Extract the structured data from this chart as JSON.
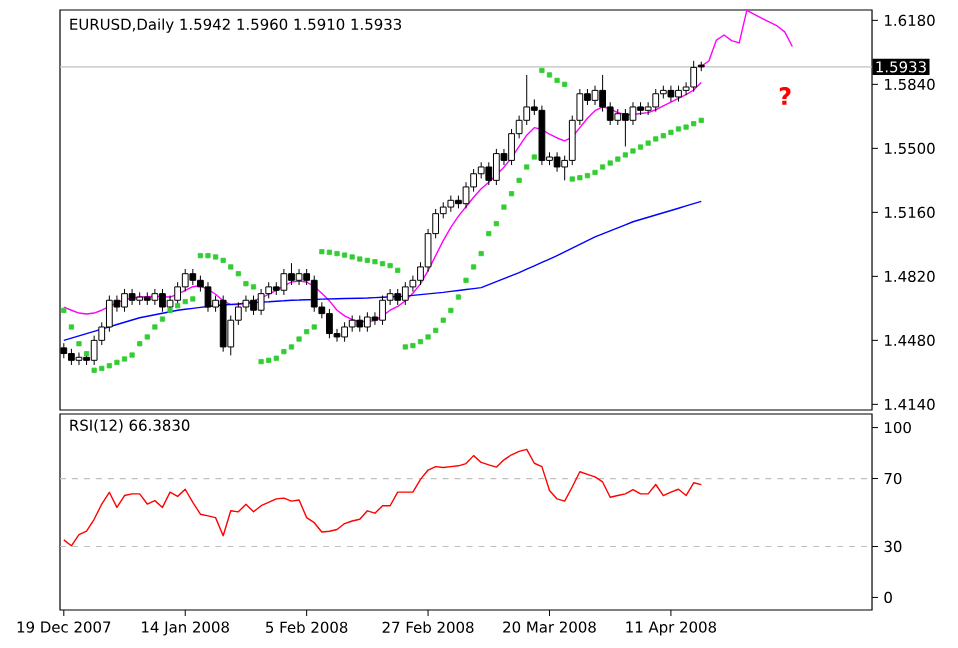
{
  "chart_data": [
    {
      "type": "candlestick",
      "title": "EURUSD,Daily 1.5942 1.5960 1.5910 1.5933",
      "categories": [
        null,
        null,
        null,
        null,
        null,
        null,
        null,
        null,
        null,
        null,
        null,
        null,
        null,
        null,
        null,
        null,
        null,
        null,
        null,
        null,
        null,
        null,
        null,
        null,
        null,
        null,
        null,
        null,
        null,
        null,
        null,
        null,
        null,
        null,
        null,
        null,
        null,
        null,
        null,
        null,
        null,
        null,
        null,
        null,
        null,
        null,
        null,
        null,
        null,
        null,
        null,
        null,
        null,
        null,
        null,
        null,
        null,
        null,
        null,
        null,
        null,
        null,
        null,
        null,
        null,
        null,
        null,
        null,
        null,
        null,
        null,
        null,
        null,
        null,
        null,
        null,
        null,
        null,
        null,
        null,
        null,
        null,
        null,
        null,
        null,
        null,
        null,
        null,
        null,
        null,
        null,
        null,
        null,
        null,
        null,
        null,
        null,
        null,
        null,
        null,
        null,
        null,
        null,
        null,
        null,
        null,
        null
      ],
      "ohlc": [
        [
          1.444,
          1.4465,
          1.4385,
          1.441
        ],
        [
          1.441,
          1.4435,
          1.4349,
          1.4374
        ],
        [
          1.4374,
          1.4415,
          1.4349,
          1.439
        ],
        [
          1.439,
          1.4415,
          1.4349,
          1.4374
        ],
        [
          1.4374,
          1.4505,
          1.4349,
          1.448
        ],
        [
          1.448,
          1.4576,
          1.4455,
          1.4551
        ],
        [
          1.4551,
          1.4718,
          1.4526,
          1.4693
        ],
        [
          1.4693,
          1.4718,
          1.4632,
          1.4657
        ],
        [
          1.4657,
          1.4753,
          1.4632,
          1.4728
        ],
        [
          1.4728,
          1.4753,
          1.4668,
          1.4693
        ],
        [
          1.4693,
          1.4735,
          1.4668,
          1.471
        ],
        [
          1.471,
          1.4735,
          1.4668,
          1.4693
        ],
        [
          1.4693,
          1.4753,
          1.4668,
          1.4728
        ],
        [
          1.4728,
          1.4753,
          1.4632,
          1.4657
        ],
        [
          1.4657,
          1.4718,
          1.4632,
          1.4693
        ],
        [
          1.4693,
          1.4789,
          1.4668,
          1.4764
        ],
        [
          1.4764,
          1.4859,
          1.4739,
          1.4834
        ],
        [
          1.4834,
          1.4859,
          1.4774,
          1.4799
        ],
        [
          1.4799,
          1.4824,
          1.4739,
          1.4764
        ],
        [
          1.4764,
          1.4789,
          1.4632,
          1.4657
        ],
        [
          1.4657,
          1.4718,
          1.4632,
          1.4693
        ],
        [
          1.4693,
          1.4718,
          1.442,
          1.4445
        ],
        [
          1.4445,
          1.4612,
          1.44,
          1.4587
        ],
        [
          1.4587,
          1.4682,
          1.4562,
          1.4657
        ],
        [
          1.4657,
          1.4718,
          1.4632,
          1.4693
        ],
        [
          1.4693,
          1.4718,
          1.4615,
          1.464
        ],
        [
          1.464,
          1.4753,
          1.4615,
          1.4728
        ],
        [
          1.4728,
          1.4789,
          1.4703,
          1.4764
        ],
        [
          1.4764,
          1.4789,
          1.4721,
          1.4746
        ],
        [
          1.4746,
          1.4859,
          1.4721,
          1.4834
        ],
        [
          1.4834,
          1.489,
          1.4774,
          1.4799
        ],
        [
          1.4799,
          1.4859,
          1.4774,
          1.4834
        ],
        [
          1.4834,
          1.4859,
          1.4774,
          1.4799
        ],
        [
          1.4799,
          1.4824,
          1.4632,
          1.4657
        ],
        [
          1.4657,
          1.4682,
          1.4597,
          1.4622
        ],
        [
          1.4622,
          1.4647,
          1.4491,
          1.4516
        ],
        [
          1.4516,
          1.4541,
          1.4473,
          1.4498
        ],
        [
          1.4498,
          1.4576,
          1.4473,
          1.4551
        ],
        [
          1.4551,
          1.4612,
          1.4526,
          1.4587
        ],
        [
          1.4587,
          1.4612,
          1.4526,
          1.4551
        ],
        [
          1.4551,
          1.4629,
          1.4526,
          1.4604
        ],
        [
          1.4604,
          1.4629,
          1.4562,
          1.4587
        ],
        [
          1.4587,
          1.4718,
          1.4562,
          1.4693
        ],
        [
          1.4693,
          1.4753,
          1.4668,
          1.4728
        ],
        [
          1.4728,
          1.4753,
          1.4668,
          1.4693
        ],
        [
          1.4693,
          1.4789,
          1.4668,
          1.4764
        ],
        [
          1.4764,
          1.4824,
          1.4739,
          1.4799
        ],
        [
          1.4799,
          1.4895,
          1.4774,
          1.487
        ],
        [
          1.487,
          1.5072,
          1.4845,
          1.5047
        ],
        [
          1.5047,
          1.5178,
          1.5022,
          1.5153
        ],
        [
          1.5153,
          1.5213,
          1.5128,
          1.5188
        ],
        [
          1.5188,
          1.5249,
          1.5163,
          1.5224
        ],
        [
          1.5224,
          1.5249,
          1.5181,
          1.5206
        ],
        [
          1.5206,
          1.532,
          1.5181,
          1.5295
        ],
        [
          1.5295,
          1.539,
          1.527,
          1.5365
        ],
        [
          1.5365,
          1.5426,
          1.534,
          1.5401
        ],
        [
          1.5401,
          1.5426,
          1.5305,
          1.533
        ],
        [
          1.533,
          1.5497,
          1.5305,
          1.5472
        ],
        [
          1.5472,
          1.5497,
          1.5411,
          1.5436
        ],
        [
          1.5436,
          1.5603,
          1.5411,
          1.5578
        ],
        [
          1.5578,
          1.5674,
          1.5553,
          1.5649
        ],
        [
          1.5649,
          1.589,
          1.5624,
          1.572
        ],
        [
          1.572,
          1.576,
          1.5677,
          1.5702
        ],
        [
          1.5702,
          1.5727,
          1.5411,
          1.5436
        ],
        [
          1.5436,
          1.5479,
          1.5411,
          1.5454
        ],
        [
          1.5454,
          1.5479,
          1.5376,
          1.5401
        ],
        [
          1.5401,
          1.5461,
          1.533,
          1.5436
        ],
        [
          1.5436,
          1.5674,
          1.5411,
          1.5649
        ],
        [
          1.5649,
          1.5815,
          1.5624,
          1.579
        ],
        [
          1.579,
          1.5815,
          1.573,
          1.5755
        ],
        [
          1.5755,
          1.5833,
          1.573,
          1.5808
        ],
        [
          1.5808,
          1.589,
          1.5695,
          1.572
        ],
        [
          1.572,
          1.5745,
          1.5624,
          1.5649
        ],
        [
          1.5649,
          1.5709,
          1.5624,
          1.5684
        ],
        [
          1.5684,
          1.5709,
          1.551,
          1.5649
        ],
        [
          1.5649,
          1.5745,
          1.5624,
          1.572
        ],
        [
          1.572,
          1.5745,
          1.5677,
          1.5702
        ],
        [
          1.5702,
          1.5745,
          1.5677,
          1.572
        ],
        [
          1.572,
          1.5815,
          1.5695,
          1.579
        ],
        [
          1.579,
          1.5833,
          1.5765,
          1.5808
        ],
        [
          1.5808,
          1.5833,
          1.5748,
          1.5773
        ],
        [
          1.5773,
          1.5833,
          1.5748,
          1.5808
        ],
        [
          1.5808,
          1.5851,
          1.5783,
          1.5826
        ],
        [
          1.5826,
          1.5965,
          1.5801,
          1.593
        ],
        [
          1.5942,
          1.596,
          1.591,
          1.5933
        ],
        null,
        null,
        null,
        null,
        null,
        null,
        null,
        null,
        null,
        null,
        null,
        null,
        null,
        null,
        null,
        null,
        null,
        null,
        null,
        null,
        null,
        null
      ],
      "series": [
        {
          "type": "line",
          "color": "#ff00ff",
          "values": [
            1.4657,
            1.464,
            1.4625,
            1.462,
            1.4625,
            1.464,
            1.466,
            1.468,
            1.4695,
            1.4705,
            1.471,
            1.4712,
            1.4714,
            1.4712,
            1.471,
            1.4725,
            1.4745,
            1.4765,
            1.477,
            1.475,
            1.4725,
            1.469,
            1.467,
            1.467,
            1.468,
            1.469,
            1.4705,
            1.4725,
            1.4745,
            1.477,
            1.479,
            1.4795,
            1.479,
            1.4765,
            1.473,
            1.469,
            1.464,
            1.461,
            1.459,
            1.458,
            1.458,
            1.4585,
            1.461,
            1.464,
            1.466,
            1.469,
            1.473,
            1.478,
            1.485,
            1.493,
            1.501,
            1.508,
            1.514,
            1.519,
            1.524,
            1.5285,
            1.532,
            1.536,
            1.54,
            1.545,
            1.551,
            1.557,
            1.561,
            1.56,
            1.5575,
            1.5555,
            1.554,
            1.556,
            1.561,
            1.566,
            1.57,
            1.572,
            1.571,
            1.569,
            1.568,
            1.568,
            1.5685,
            1.569,
            1.5705,
            1.5725,
            1.5745,
            1.5765,
            1.5785,
            1.581,
            1.585,
            null,
            null,
            null,
            null,
            null,
            null,
            null,
            null,
            null,
            null,
            null,
            null,
            null,
            null,
            null,
            null,
            null,
            null,
            null,
            null,
            null,
            null
          ]
        },
        {
          "type": "line",
          "color": "#0000ff",
          "values": [
            1.448,
            1.4492,
            1.4504,
            1.4516,
            1.4528,
            1.454,
            1.4552,
            1.4564,
            1.4576,
            1.4588,
            1.46,
            1.4608,
            1.4616,
            1.4624,
            1.4632,
            1.464,
            1.4645,
            1.465,
            1.4655,
            1.466,
            1.4665,
            1.4668,
            1.4671,
            1.4674,
            1.4677,
            1.468,
            1.4683,
            1.4685,
            1.4688,
            1.469,
            1.4693,
            1.4694,
            1.4696,
            1.4697,
            1.4699,
            1.47,
            1.4701,
            1.4702,
            1.4703,
            1.4704,
            1.4705,
            1.4707,
            1.4709,
            1.4711,
            1.4713,
            1.4715,
            1.4719,
            1.4723,
            1.4727,
            1.4731,
            1.4735,
            1.474,
            1.4745,
            1.475,
            1.4755,
            1.476,
            1.4776,
            1.4792,
            1.4808,
            1.4824,
            1.484,
            1.4858,
            1.4876,
            1.4894,
            1.4912,
            1.493,
            1.495,
            1.497,
            1.499,
            1.501,
            1.503,
            1.5046,
            1.5062,
            1.5078,
            1.5094,
            1.511,
            1.5122,
            1.5134,
            1.5146,
            1.5158,
            1.517,
            1.5182,
            1.5194,
            1.5206,
            1.5218,
            null,
            null,
            null,
            null,
            null,
            null,
            null,
            null,
            null,
            null,
            null,
            null,
            null,
            null,
            null,
            null,
            null,
            null,
            null,
            null,
            null,
            null
          ]
        },
        {
          "type": "scatter",
          "color": "#32cd32",
          "marker": "square",
          "values": [
            1.4639,
            1.4551,
            1.4462,
            1.4409,
            1.4321,
            1.4331,
            1.4345,
            1.4363,
            1.4381,
            1.4402,
            1.4462,
            1.4498,
            1.4551,
            1.4593,
            1.4639,
            1.4664,
            1.4686,
            1.47,
            1.493,
            1.493,
            1.4923,
            1.4905,
            1.487,
            1.4834,
            1.4781,
            1.4764,
            1.4367,
            1.4374,
            1.4385,
            1.442,
            1.4445,
            1.4487,
            1.4526,
            1.4551,
            1.4951,
            1.4948,
            1.4941,
            1.4933,
            1.4923,
            1.4912,
            1.4905,
            1.4898,
            1.4887,
            1.4877,
            1.4852,
            1.4445,
            1.4452,
            1.4473,
            1.4498,
            1.4533,
            1.4587,
            1.4639,
            1.471,
            1.4799,
            1.487,
            1.4941,
            1.5047,
            1.51,
            1.5188,
            1.5259,
            1.533,
            1.5401,
            1.5454,
            1.5914,
            1.589,
            1.5861,
            1.584,
            1.5337,
            1.5344,
            1.5355,
            1.5372,
            1.5401,
            1.5422,
            1.5443,
            1.5465,
            1.5486,
            1.5507,
            1.5528,
            1.555,
            1.5567,
            1.5585,
            1.5603,
            1.5613,
            1.5631,
            1.5649,
            null,
            null,
            null,
            null,
            null,
            null,
            null,
            null,
            null,
            null,
            null,
            null,
            null,
            null,
            null,
            null,
            null,
            null,
            null,
            null,
            null,
            null
          ]
        },
        {
          "type": "line",
          "color": "#ff00ff",
          "values": [
            null,
            null,
            null,
            null,
            null,
            null,
            null,
            null,
            null,
            null,
            null,
            null,
            null,
            null,
            null,
            null,
            null,
            null,
            null,
            null,
            null,
            null,
            null,
            null,
            null,
            null,
            null,
            null,
            null,
            null,
            null,
            null,
            null,
            null,
            null,
            null,
            null,
            null,
            null,
            null,
            null,
            null,
            null,
            null,
            null,
            null,
            null,
            null,
            null,
            null,
            null,
            null,
            null,
            null,
            null,
            null,
            null,
            null,
            null,
            null,
            null,
            null,
            null,
            null,
            null,
            null,
            null,
            null,
            null,
            null,
            null,
            null,
            null,
            null,
            null,
            null,
            null,
            null,
            null,
            null,
            null,
            null,
            null,
            null,
            1.5936,
            1.5964,
            1.6075,
            1.6102,
            1.6072,
            1.606,
            1.6233,
            1.6212,
            1.619,
            1.617,
            1.615,
            1.6119,
            1.6041,
            null,
            null,
            null,
            null,
            null,
            null,
            null,
            null,
            null,
            null
          ]
        }
      ],
      "ylim": [
        1.411,
        1.6235
      ],
      "yticks": [
        {
          "value": 1.618,
          "label": "1.6180"
        },
        {
          "value": 1.584,
          "label": "1.5840"
        },
        {
          "value": 1.55,
          "label": "1.5500"
        },
        {
          "value": 1.516,
          "label": "1.5160"
        },
        {
          "value": 1.482,
          "label": "1.4820"
        },
        {
          "value": 1.448,
          "label": "1.4480"
        },
        {
          "value": 1.414,
          "label": "1.4140"
        }
      ],
      "ref_lines": [
        {
          "axis": "y",
          "value": 1.5933,
          "label": "1.5933",
          "color": "#c0c0c0"
        }
      ],
      "annotations": [
        "?"
      ],
      "tick_labels": "y"
    },
    {
      "type": "line",
      "title": "RSI(12) 66.3830",
      "categories": [
        "19 Dec 2007",
        null,
        null,
        null,
        null,
        null,
        null,
        null,
        null,
        null,
        null,
        null,
        null,
        null,
        null,
        null,
        "14 Jan 2008",
        null,
        null,
        null,
        null,
        null,
        null,
        null,
        null,
        null,
        null,
        null,
        null,
        null,
        null,
        null,
        "5 Feb 2008",
        null,
        null,
        null,
        null,
        null,
        null,
        null,
        null,
        null,
        null,
        null,
        null,
        null,
        null,
        null,
        "27 Feb 2008",
        null,
        null,
        null,
        null,
        null,
        null,
        null,
        null,
        null,
        null,
        null,
        null,
        null,
        null,
        null,
        "20 Mar 2008",
        null,
        null,
        null,
        null,
        null,
        null,
        null,
        null,
        null,
        null,
        null,
        null,
        null,
        null,
        null,
        "11 Apr 2008",
        null,
        null,
        null,
        null,
        null,
        null,
        null,
        null,
        null,
        null,
        null,
        null,
        null,
        null,
        null,
        null,
        null,
        null,
        null,
        null,
        null,
        null,
        null,
        null,
        null,
        null
      ],
      "series": [
        {
          "color": "#ff0000",
          "values": [
            33.9,
            30.4,
            37,
            39,
            46,
            55,
            61.9,
            53,
            60,
            61,
            61,
            55,
            57,
            53,
            62,
            59.5,
            63.7,
            56,
            49,
            48,
            47,
            36.3,
            51,
            50.4,
            54.9,
            50.4,
            54,
            56,
            58,
            58.5,
            56.7,
            57.4,
            47,
            44,
            38.5,
            39,
            40,
            43.5,
            45,
            46,
            51,
            49.6,
            54,
            54,
            62,
            62,
            62,
            69.5,
            75,
            77,
            76.5,
            77,
            77.5,
            78.8,
            83.5,
            79.5,
            78,
            76.7,
            81,
            84,
            86,
            87.2,
            79,
            77,
            63,
            58,
            56.7,
            65,
            74,
            72.5,
            71,
            68,
            59,
            60,
            61,
            63.5,
            61,
            61,
            66.5,
            60,
            62,
            63.7,
            60,
            67.5,
            66.4,
            null,
            null,
            null,
            null,
            null,
            null,
            null,
            null,
            null,
            null,
            null,
            null,
            null,
            null,
            null,
            null,
            null,
            null,
            null,
            null,
            null,
            null
          ]
        }
      ],
      "ylim": [
        -7.4,
        108
      ],
      "yticks": [
        0,
        30,
        70,
        100
      ],
      "ref_lines": [
        {
          "axis": "y",
          "value": 70,
          "color": "#c0c0c0",
          "line_style": "dashed"
        },
        {
          "axis": "y",
          "value": 30,
          "color": "#c0c0c0",
          "line_style": "dashed"
        }
      ]
    }
  ]
}
